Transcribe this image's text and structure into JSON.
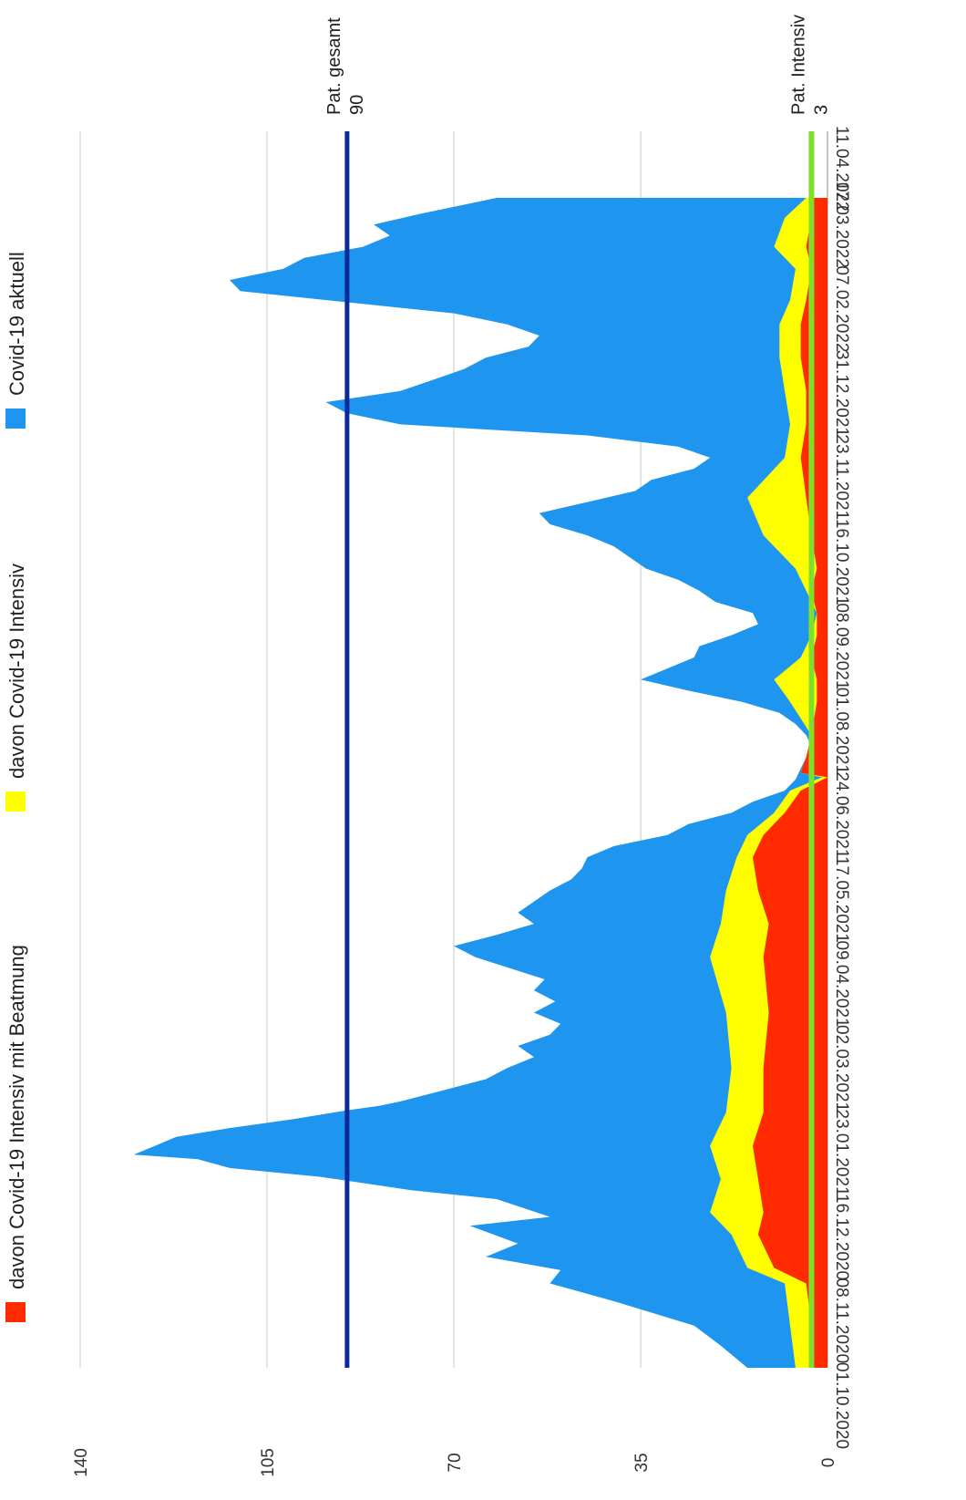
{
  "chart_data": {
    "type": "area",
    "orientation": "rotated-90",
    "x_start": "01.10.2020",
    "x_end": "11.04.2022",
    "x_ticks": [
      "01.10.2020",
      "08.11.2020",
      "16.12.2020",
      "23.01.2021",
      "02.03.2021",
      "09.04.2021",
      "17.05.2021",
      "24.06.2021",
      "01.08.2021",
      "08.09.2021",
      "16.10.2021",
      "23.11.2021",
      "31.12.2021",
      "07.02.2022",
      "17.03.2022",
      "11.04.2022"
    ],
    "ylim": [
      0,
      140
    ],
    "y_ticks": [
      0,
      35,
      70,
      105,
      140
    ],
    "grid": true,
    "legend_position": "left",
    "series": [
      {
        "name": "davon Covid-19 Intensiv mit Beatmung",
        "color": "#ff2a00",
        "values": [
          [
            0,
            3
          ],
          [
            19,
            3
          ],
          [
            38,
            4
          ],
          [
            45,
            10
          ],
          [
            60,
            13
          ],
          [
            70,
            12
          ],
          [
            85,
            13
          ],
          [
            100,
            14
          ],
          [
            115,
            12
          ],
          [
            135,
            12
          ],
          [
            160,
            11
          ],
          [
            185,
            12
          ],
          [
            200,
            11
          ],
          [
            215,
            13
          ],
          [
            230,
            14
          ],
          [
            240,
            12
          ],
          [
            250,
            8
          ],
          [
            260,
            5
          ],
          [
            266,
            0
          ],
          [
            268,
            5
          ],
          [
            275,
            4
          ],
          [
            285,
            3
          ],
          [
            300,
            2
          ],
          [
            310,
            2
          ],
          [
            320,
            3
          ],
          [
            330,
            2
          ],
          [
            340,
            2
          ],
          [
            350,
            3
          ],
          [
            360,
            2
          ],
          [
            375,
            3
          ],
          [
            392,
            4
          ],
          [
            410,
            5
          ],
          [
            425,
            4
          ],
          [
            440,
            4
          ],
          [
            455,
            5
          ],
          [
            470,
            5
          ],
          [
            481,
            4
          ],
          [
            495,
            3
          ],
          [
            505,
            4
          ],
          [
            518,
            3
          ],
          [
            527,
            3
          ]
        ]
      },
      {
        "name": "davon Covid-19 Intensiv",
        "color": "#ffff00",
        "values": [
          [
            0,
            6
          ],
          [
            19,
            7
          ],
          [
            38,
            8
          ],
          [
            45,
            15
          ],
          [
            60,
            18
          ],
          [
            70,
            22
          ],
          [
            85,
            20
          ],
          [
            100,
            22
          ],
          [
            115,
            19
          ],
          [
            135,
            18
          ],
          [
            160,
            19
          ],
          [
            185,
            22
          ],
          [
            200,
            20
          ],
          [
            215,
            19
          ],
          [
            230,
            17
          ],
          [
            240,
            15
          ],
          [
            250,
            10
          ],
          [
            260,
            7
          ],
          [
            266,
            1
          ],
          [
            268,
            5
          ],
          [
            275,
            4
          ],
          [
            285,
            3
          ],
          [
            300,
            7
          ],
          [
            310,
            10
          ],
          [
            320,
            5
          ],
          [
            330,
            3
          ],
          [
            340,
            2
          ],
          [
            350,
            4
          ],
          [
            360,
            6
          ],
          [
            375,
            12
          ],
          [
            392,
            15
          ],
          [
            410,
            8
          ],
          [
            425,
            7
          ],
          [
            440,
            8
          ],
          [
            455,
            9
          ],
          [
            470,
            9
          ],
          [
            481,
            7
          ],
          [
            495,
            6
          ],
          [
            505,
            10
          ],
          [
            518,
            8
          ],
          [
            527,
            4
          ]
        ]
      },
      {
        "name": "Covid-19 aktuell",
        "color": "#1e96f0",
        "values": [
          [
            0,
            15
          ],
          [
            10,
            20
          ],
          [
            19,
            25
          ],
          [
            30,
            40
          ],
          [
            38,
            52
          ],
          [
            44,
            50
          ],
          [
            50,
            64
          ],
          [
            56,
            58
          ],
          [
            64,
            67
          ],
          [
            68,
            52
          ],
          [
            76,
            62
          ],
          [
            80,
            78
          ],
          [
            86,
            95
          ],
          [
            90,
            112
          ],
          [
            94,
            118
          ],
          [
            96,
            130
          ],
          [
            100,
            126
          ],
          [
            104,
            122
          ],
          [
            108,
            112
          ],
          [
            112,
            100
          ],
          [
            116,
            90
          ],
          [
            118,
            84
          ],
          [
            120,
            80
          ],
          [
            125,
            72
          ],
          [
            130,
            64
          ],
          [
            135,
            60
          ],
          [
            140,
            55
          ],
          [
            145,
            58
          ],
          [
            150,
            52
          ],
          [
            155,
            50
          ],
          [
            160,
            55
          ],
          [
            165,
            51
          ],
          [
            170,
            55
          ],
          [
            175,
            53
          ],
          [
            185,
            66
          ],
          [
            190,
            70
          ],
          [
            195,
            62
          ],
          [
            200,
            55
          ],
          [
            205,
            58
          ],
          [
            215,
            52
          ],
          [
            220,
            48
          ],
          [
            225,
            46
          ],
          [
            230,
            45
          ],
          [
            235,
            40
          ],
          [
            240,
            30
          ],
          [
            245,
            26
          ],
          [
            250,
            18
          ],
          [
            255,
            14
          ],
          [
            260,
            8
          ],
          [
            265,
            6
          ],
          [
            270,
            5
          ],
          [
            275,
            4
          ],
          [
            280,
            3
          ],
          [
            285,
            4
          ],
          [
            290,
            6
          ],
          [
            295,
            9
          ],
          [
            300,
            16
          ],
          [
            305,
            26
          ],
          [
            310,
            35
          ],
          [
            315,
            30
          ],
          [
            320,
            25
          ],
          [
            325,
            24
          ],
          [
            330,
            18
          ],
          [
            335,
            13
          ],
          [
            340,
            14
          ],
          [
            345,
            21
          ],
          [
            350,
            24
          ],
          [
            355,
            28
          ],
          [
            360,
            34
          ],
          [
            365,
            37
          ],
          [
            370,
            40
          ],
          [
            375,
            45
          ],
          [
            380,
            52
          ],
          [
            385,
            54
          ],
          [
            390,
            45
          ],
          [
            395,
            36
          ],
          [
            400,
            33
          ],
          [
            405,
            25
          ],
          [
            410,
            22
          ],
          [
            415,
            28
          ],
          [
            420,
            45
          ],
          [
            425,
            80
          ],
          [
            430,
            90
          ],
          [
            435,
            94
          ],
          [
            440,
            80
          ],
          [
            445,
            74
          ],
          [
            450,
            68
          ],
          [
            455,
            64
          ],
          [
            460,
            56
          ],
          [
            465,
            54
          ],
          [
            470,
            60
          ],
          [
            475,
            70
          ],
          [
            480,
            90
          ],
          [
            485,
            110
          ],
          [
            490,
            112
          ],
          [
            495,
            102
          ],
          [
            500,
            98
          ],
          [
            505,
            87
          ],
          [
            510,
            82
          ],
          [
            515,
            85
          ],
          [
            520,
            76
          ],
          [
            527,
            62
          ]
        ]
      }
    ],
    "reference_lines": [
      {
        "label": "Pat. gesamt",
        "value": "90",
        "color": "#0a2a9a"
      },
      {
        "label": "Pat. Intensiv",
        "value": "3",
        "color": "#7ee02a"
      }
    ]
  }
}
